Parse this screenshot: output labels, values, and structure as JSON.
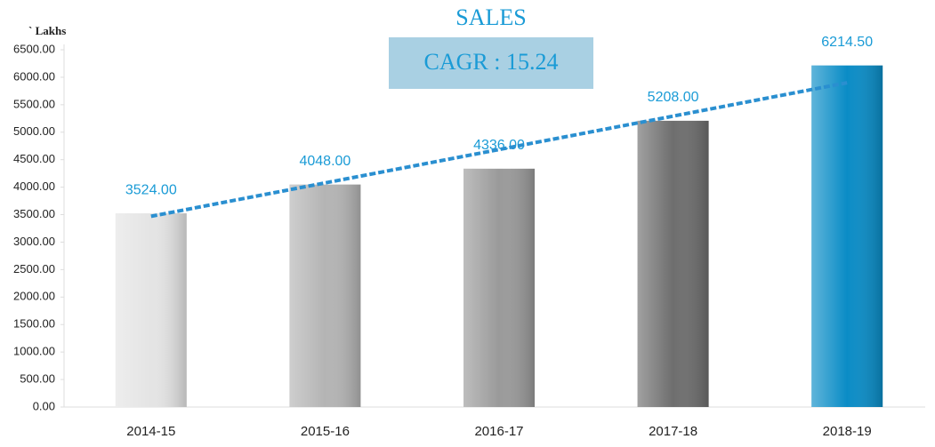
{
  "chart_data": {
    "type": "bar",
    "title": "SALES",
    "subtitle": "CAGR : 15.24",
    "y_label": "` Lakhs",
    "categories": [
      "2014-15",
      "2015-16",
      "2016-17",
      "2017-18",
      "2018-19"
    ],
    "values": [
      3524,
      4048,
      4336,
      5208,
      6214.5
    ],
    "value_labels": [
      "3524.00",
      "4048.00",
      "4336.00",
      "5208.00",
      "6214.50"
    ],
    "colors": [
      "#e4e4e4",
      "#b4b4b4",
      "#9a9a9a",
      "#6e6e6e",
      "#0a8cc6"
    ],
    "trend": {
      "from": 3470,
      "to": 5900,
      "color": "#2a8fd0"
    },
    "ylim": [
      0,
      6500
    ],
    "yticks": [
      {
        "value": 0,
        "label": "0.00"
      },
      {
        "value": 500,
        "label": "500.00"
      },
      {
        "value": 1000,
        "label": "1000.00"
      },
      {
        "value": 1500,
        "label": "1500.00"
      },
      {
        "value": 2000,
        "label": "2000.00"
      },
      {
        "value": 2500,
        "label": "2500.00"
      },
      {
        "value": 3000,
        "label": "3000.00"
      },
      {
        "value": 3500,
        "label": "3500.00"
      },
      {
        "value": 4000,
        "label": "4000.00"
      },
      {
        "value": 4500,
        "label": "4500.00"
      },
      {
        "value": 5000,
        "label": "5000.00"
      },
      {
        "value": 5500,
        "label": "5500.00"
      },
      {
        "value": 6000,
        "label": "6000.00"
      },
      {
        "value": 6500,
        "label": "6500.00"
      }
    ]
  }
}
